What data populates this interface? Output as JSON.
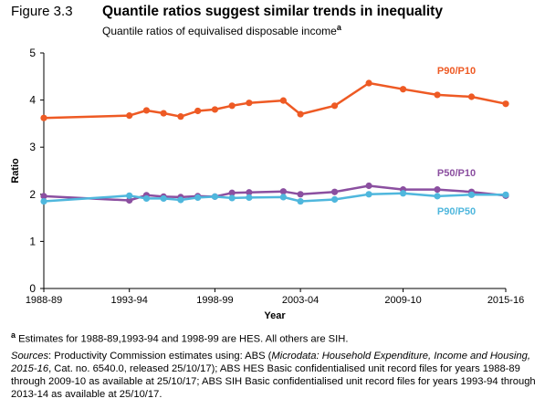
{
  "figure": {
    "number": "Figure 3.3",
    "title": "Quantile ratios suggest similar trends in inequality",
    "subtitle": "Quantile ratios of equivalised disposable income",
    "subtitle_marker": "a"
  },
  "footnote": {
    "marker": "a",
    "text": "Estimates for 1988-89,1993-94 and 1998-99 are HES. All others are SIH."
  },
  "sources": {
    "label": "Sources",
    "p1": ": Productivity Commission estimates using: ABS (",
    "italic": "Microdata: Household Expenditure, Income and Housing, 2015-16",
    "p2": ", Cat. no. 6540.0, released 25/10/17); ABS HES Basic confidentialised unit record files for years 1988-89 through 2009-10 as available at 25/10/17; ABS SIH Basic confidentialised unit record files for years 1993-94 through 2013-14 as available at 25/10/17."
  },
  "colors": {
    "p90p10": "#EE5A24",
    "p50p10": "#8B4FA0",
    "p90p50": "#4FB7DD",
    "axis": "#000000"
  },
  "chart_data": {
    "type": "line",
    "title": "",
    "xlabel": "Year",
    "ylabel": "Ratio",
    "ylim": [
      0,
      5
    ],
    "yticks": [
      "0",
      "1",
      "2",
      "3",
      "4",
      "5"
    ],
    "xticks": [
      "1988-89",
      "1993-94",
      "1998-99",
      "2003-04",
      "2009-10",
      "2015-16"
    ],
    "xtick_years": [
      1989,
      1994,
      1999,
      2004,
      2010,
      2016
    ],
    "grid": false,
    "x": [
      1989,
      1994,
      1995,
      1996,
      1997,
      1998,
      1999,
      2000,
      2001,
      2003,
      2004,
      2006,
      2008,
      2010,
      2012,
      2014,
      2016
    ],
    "series": [
      {
        "name": "P90/P10",
        "color_key": "p90p10",
        "values": [
          3.62,
          3.67,
          3.78,
          3.72,
          3.65,
          3.77,
          3.8,
          3.88,
          3.94,
          3.99,
          3.7,
          3.88,
          4.36,
          4.23,
          4.11,
          4.07,
          3.92
        ]
      },
      {
        "name": "P50/P10",
        "color_key": "p50p10",
        "values": [
          1.96,
          1.87,
          1.98,
          1.95,
          1.94,
          1.96,
          1.95,
          2.03,
          2.04,
          2.06,
          2.0,
          2.05,
          2.18,
          2.1,
          2.1,
          2.05,
          1.97
        ]
      },
      {
        "name": "P90/P50",
        "color_key": "p90p50",
        "values": [
          1.85,
          1.97,
          1.91,
          1.91,
          1.88,
          1.93,
          1.95,
          1.92,
          1.93,
          1.94,
          1.85,
          1.89,
          2.0,
          2.02,
          1.96,
          1.99,
          1.99
        ]
      }
    ]
  }
}
